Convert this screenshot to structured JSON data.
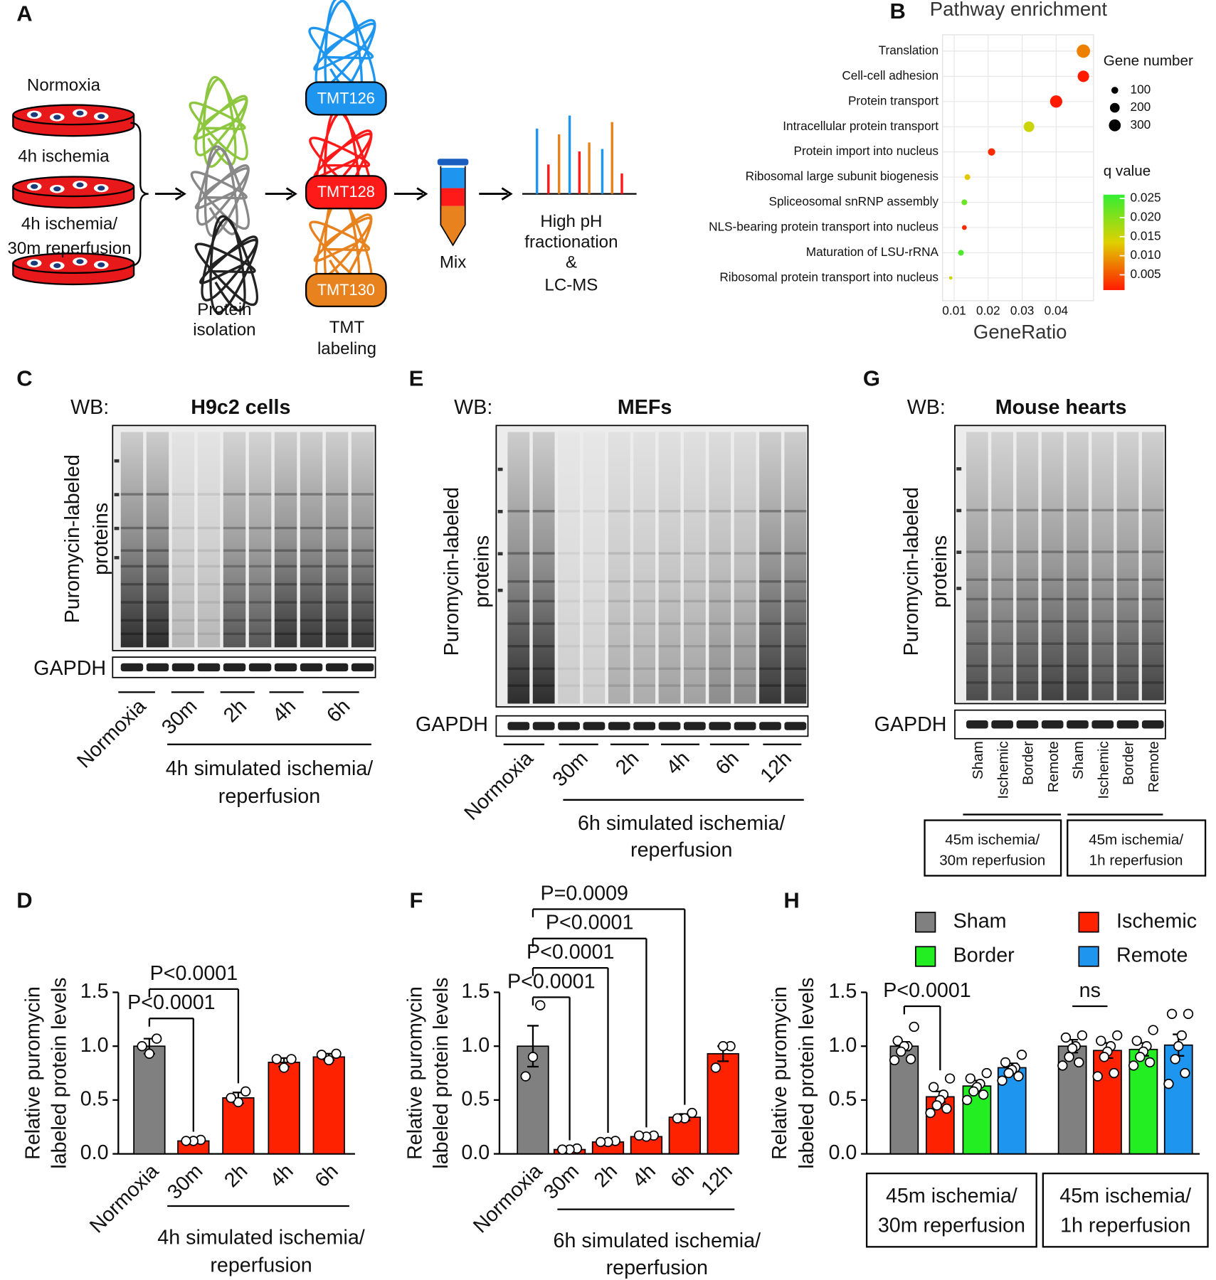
{
  "panel_labels": [
    "A",
    "B",
    "C",
    "D",
    "E",
    "F",
    "G",
    "H"
  ],
  "panel_a": {
    "conditions": [
      "Normoxia",
      "4h ischemia",
      "4h ischemia/",
      "30m reperfusion"
    ],
    "protein_isolation": [
      "Protein",
      "isolation"
    ],
    "tmt_labeling": [
      "TMT",
      "labeling"
    ],
    "tags": [
      "TMT126",
      "TMT128",
      "TMT130"
    ],
    "mix": "Mix",
    "fractionation": [
      "High pH",
      "fractionation",
      "&",
      "LC-MS"
    ]
  },
  "blots": [
    {
      "wb": "WB:",
      "title": "H9c2 cells",
      "ylabel": [
        "Puromycin-labeled",
        "proteins"
      ],
      "loading": "GAPDH",
      "lanes": [
        "Normoxia",
        "30m",
        "2h",
        "4h",
        "6h"
      ],
      "treatment": [
        "4h simulated ischemia/",
        "reperfusion"
      ]
    },
    {
      "wb": "WB:",
      "title": "MEFs",
      "ylabel": [
        "Puromycin-labeled",
        "proteins"
      ],
      "loading": "GAPDH",
      "lanes": [
        "Normoxia",
        "30m",
        "2h",
        "4h",
        "6h",
        "12h"
      ],
      "treatment": [
        "6h simulated ischemia/",
        "reperfusion"
      ]
    },
    {
      "wb": "WB:",
      "title": "Mouse hearts",
      "ylabel": [
        "Puromycin-labeled",
        "proteins"
      ],
      "loading": "GAPDH",
      "lanes": [
        "Sham",
        "Ischemic",
        "Border",
        "Remote",
        "Sham",
        "Ischemic",
        "Border",
        "Remote"
      ],
      "lane_colors": [
        "#111111",
        "#ff1a1a",
        "#22bb22",
        "#1e96f0",
        "#111111",
        "#ff1a1a",
        "#22bb22",
        "#1e96f0"
      ],
      "groups": [
        [
          "45m ischemia/",
          "30m reperfusion"
        ],
        [
          "45m ischemia/",
          "1h reperfusion"
        ]
      ]
    }
  ],
  "chart_data": [
    {
      "type": "scatter",
      "title": "Pathway enrichment",
      "x_label": "GeneRatio",
      "categories": [
        "Translation",
        "Cell-cell adhesion",
        "Protein transport",
        "Intracellular protein transport",
        "Protein import into nucleus",
        "Ribosomal large subunit biogenesis",
        "Spliceosomal snRNP assembly",
        "NLS-bearing protein transport into nucleus",
        "Maturation of LSU-rRNA",
        "Ribosomal protein transport into nucleus"
      ],
      "x": [
        0.048,
        0.048,
        0.04,
        0.032,
        0.021,
        0.0139,
        0.013,
        0.013,
        0.012,
        0.009
      ],
      "size": [
        380,
        280,
        320,
        240,
        115,
        70,
        70,
        50,
        70,
        25
      ],
      "q": [
        0.008,
        0.001,
        0.001,
        0.015,
        0.002,
        0.013,
        0.022,
        0.002,
        0.024,
        0.015
      ],
      "xlim": [
        0.0066,
        0.051
      ],
      "xticks": [
        0.01,
        0.02,
        0.03,
        0.04
      ],
      "grid": true,
      "size_legend": {
        "title": "Gene number",
        "values": [
          100,
          200,
          300
        ]
      },
      "color_legend": {
        "title": "q value",
        "lim": [
          0.001,
          0.026
        ],
        "colors": [
          "#ff1a00",
          "#e0d000",
          "#33ee33"
        ],
        "ticks": [
          0.025,
          {
            "value": 0.02,
            "label": "0.020"
          },
          0.015,
          {
            "value": 0.01,
            "label": "0.010"
          },
          0.005
        ]
      }
    },
    {
      "type": "bar",
      "ylabel": [
        "Relative puromycin",
        "labeled protein levels"
      ],
      "categories": [
        "Normoxia",
        "30m",
        "2h",
        "4h",
        "6h"
      ],
      "values": [
        1.0,
        0.12,
        0.52,
        0.85,
        0.9
      ],
      "errors": [
        0.07,
        0.01,
        0.05,
        0.04,
        0.03
      ],
      "points": [
        [
          1.07,
          0.93,
          1.0
        ],
        [
          0.13,
          0.12,
          0.12
        ],
        [
          0.58,
          0.48,
          0.52
        ],
        [
          0.88,
          0.8,
          0.88
        ],
        [
          0.93,
          0.87,
          0.92
        ]
      ],
      "colors": [
        "#808080",
        "#ff2200",
        "#ff2200",
        "#ff2200",
        "#ff2200"
      ],
      "ylim": [
        0,
        1.5
      ],
      "yticks": [
        {
          "value": 0,
          "label": "0.0"
        },
        0.5,
        {
          "value": 1,
          "label": "1.0"
        },
        1.5
      ],
      "treatment": [
        "4h simulated ischemia/",
        "reperfusion"
      ],
      "annotations": [
        "P<0.0001",
        "P<0.0001"
      ]
    },
    {
      "type": "bar",
      "ylabel": [
        "Relative puromycin",
        "labeled protein levels"
      ],
      "categories": [
        "Normoxia",
        "30m",
        "2h",
        "4h",
        "6h",
        "12h"
      ],
      "values": [
        1.0,
        0.04,
        0.11,
        0.16,
        0.34,
        0.93
      ],
      "errors": [
        0.19,
        0.01,
        0.01,
        0.01,
        0.03,
        0.07
      ],
      "points": [
        [
          1.38,
          0.9,
          0.72
        ],
        [
          0.05,
          0.04,
          0.04
        ],
        [
          0.12,
          0.11,
          0.11
        ],
        [
          0.17,
          0.16,
          0.17
        ],
        [
          0.38,
          0.33,
          0.33
        ],
        [
          1.0,
          1.0,
          0.8
        ]
      ],
      "colors": [
        "#808080",
        "#ff2200",
        "#ff2200",
        "#ff2200",
        "#ff2200",
        "#ff2200"
      ],
      "ylim": [
        0,
        1.5
      ],
      "yticks": [
        {
          "value": 0,
          "label": "0.0"
        },
        0.5,
        {
          "value": 1,
          "label": "1.0"
        },
        1.5
      ],
      "treatment": [
        "6h simulated ischemia/",
        "reperfusion"
      ],
      "annotations": [
        "P<0.0001",
        "P<0.0001",
        "P<0.0001",
        "P=0.0009"
      ]
    },
    {
      "type": "bar",
      "ylabel": [
        "Relative puromycin",
        "labeled protein levels"
      ],
      "groups": [
        [
          "45m ischemia/",
          "30m reperfusion"
        ],
        [
          "45m ischemia/",
          "1h reperfusion"
        ]
      ],
      "series": [
        {
          "name": "Sham",
          "color": "#808080",
          "values": [
            1.0,
            1.0
          ],
          "errors": [
            0.04,
            0.06
          ],
          "points": [
            [
              1.18,
              1.05,
              1.0,
              1.0,
              0.95,
              0.88,
              0.87
            ],
            [
              1.1,
              1.08,
              1.0,
              0.98,
              0.9,
              0.85,
              0.82
            ]
          ]
        },
        {
          "name": "Ischemic",
          "color": "#ff2200",
          "values": [
            0.53,
            0.96
          ],
          "errors": [
            0.05,
            0.07
          ],
          "points": [
            [
              0.7,
              0.62,
              0.55,
              0.5,
              0.45,
              0.42,
              0.38
            ],
            [
              1.1,
              1.05,
              1.0,
              0.95,
              0.9,
              0.75,
              0.72
            ]
          ]
        },
        {
          "name": "Border",
          "color": "#22ee22",
          "values": [
            0.63,
            0.97
          ],
          "errors": [
            0.05,
            0.06
          ],
          "points": [
            [
              0.75,
              0.7,
              0.65,
              0.62,
              0.58,
              0.55,
              0.5
            ],
            [
              1.15,
              1.05,
              1.0,
              0.95,
              0.9,
              0.85,
              0.82
            ]
          ]
        },
        {
          "name": "Remote",
          "color": "#1e96f0",
          "values": [
            0.8,
            1.01
          ],
          "errors": [
            0.04,
            0.1
          ],
          "points": [
            [
              0.92,
              0.85,
              0.8,
              0.78,
              0.75,
              0.72,
              0.68
            ],
            [
              1.3,
              1.3,
              1.1,
              1.0,
              0.88,
              0.75,
              0.65
            ]
          ]
        }
      ],
      "ylim": [
        0,
        1.5
      ],
      "yticks": [
        {
          "value": 0,
          "label": "0.0"
        },
        0.5,
        {
          "value": 1,
          "label": "1.0"
        },
        1.5
      ],
      "annotations": [
        "P<0.0001",
        "ns"
      ]
    }
  ]
}
